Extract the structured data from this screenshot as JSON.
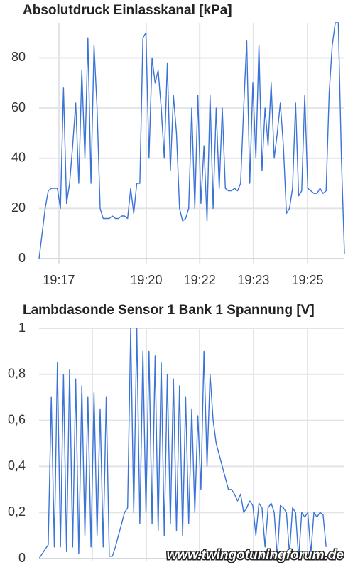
{
  "chart_data": [
    {
      "type": "line",
      "title": "Absolutdruck Einlasskanal [kPa]",
      "color": "#3b73d6",
      "grid": true,
      "xlim": [
        0,
        100
      ],
      "ylim": [
        0,
        94
      ],
      "xticks": [
        {
          "value": 6.5,
          "label": "19:17"
        },
        {
          "value": 35.1,
          "label": "19:20"
        },
        {
          "value": 52.6,
          "label": "19:22"
        },
        {
          "value": 70.2,
          "label": "19:23"
        },
        {
          "value": 87.9,
          "label": "19:25"
        }
      ],
      "yticks": [
        0,
        20,
        40,
        60,
        80
      ],
      "values": [
        0,
        10,
        20,
        27,
        28,
        28,
        28,
        20,
        68,
        22,
        30,
        45,
        62,
        30,
        75,
        40,
        88,
        30,
        85,
        60,
        20,
        16,
        16,
        16,
        17,
        16,
        16,
        17,
        17,
        16,
        28,
        18,
        30,
        30,
        88,
        90,
        40,
        80,
        70,
        75,
        60,
        40,
        78,
        35,
        65,
        50,
        20,
        15,
        16,
        20,
        60,
        20,
        65,
        22,
        45,
        15,
        65,
        20,
        60,
        28,
        60,
        28,
        27,
        27,
        28,
        27,
        30,
        60,
        87,
        30,
        70,
        40,
        85,
        35,
        60,
        45,
        70,
        40,
        50,
        62,
        45,
        18,
        20,
        28,
        62,
        25,
        27,
        65,
        28,
        27,
        26,
        26,
        28,
        26,
        27,
        66,
        85,
        94,
        94,
        40,
        2
      ]
    },
    {
      "type": "line",
      "title": "Lambdasonde Sensor 1 Bank 1 Spannung [V]",
      "color": "#3b73d6",
      "grid": true,
      "xlim": [
        0,
        100
      ],
      "ylim": [
        0,
        1
      ],
      "yticks": [
        0,
        {
          "value": 0.2,
          "label": "0,2"
        },
        {
          "value": 0.4,
          "label": "0,4"
        },
        {
          "value": 0.6,
          "label": "0,6"
        },
        {
          "value": 0.8,
          "label": "0,8"
        },
        1
      ],
      "values": [
        0,
        0.02,
        0.04,
        0.06,
        0.7,
        0.05,
        0.85,
        0.05,
        0.8,
        0.03,
        0.82,
        0.05,
        0.78,
        0.02,
        0.75,
        0.1,
        0.7,
        0.05,
        0.72,
        0.1,
        0.65,
        0.05,
        0.7,
        0.01,
        0.01,
        0.05,
        0.1,
        0.15,
        0.2,
        0.22,
        1.0,
        0.2,
        1.0,
        0.15,
        0.9,
        0.2,
        0.9,
        0.15,
        0.88,
        0.12,
        0.85,
        0.1,
        0.8,
        0.15,
        0.78,
        0.12,
        0.75,
        0.1,
        0.7,
        0.15,
        0.65,
        0.2,
        0.62,
        0.3,
        0.9,
        0.4,
        0.8,
        0.6,
        0.5,
        0.45,
        0.4,
        0.35,
        0.3,
        0.3,
        0.28,
        0.25,
        0.28,
        0.2,
        0.22,
        0.25,
        0.23,
        0.1,
        0.24,
        0.22,
        0.05,
        0.22,
        0.24,
        0.2,
        0.0,
        0.23,
        0.22,
        0.2,
        0.02,
        0.22,
        0.2,
        0.0,
        0.2,
        0.18,
        0.2,
        0.02,
        0.2,
        0.18,
        0.2,
        0.19,
        0.05
      ]
    }
  ],
  "watermark": "www.twingotuningforum.de"
}
